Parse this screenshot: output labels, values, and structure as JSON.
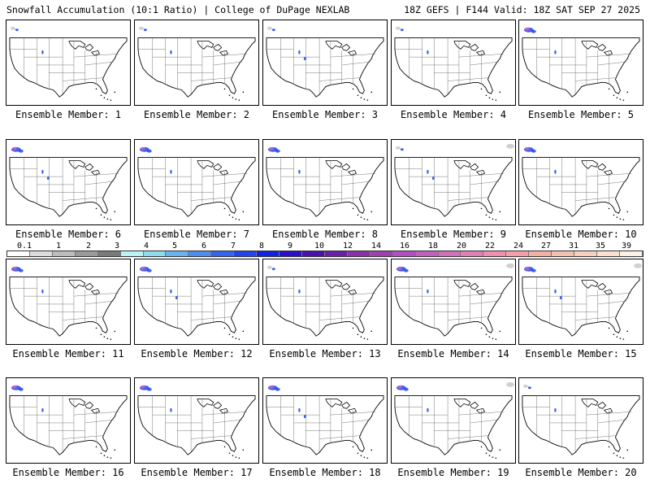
{
  "header": {
    "title": "Snowfall Accumulation (10:1 Ratio) | College of DuPage NEXLAB",
    "run_info": "18Z GEFS | F144 Valid: 18Z SAT SEP 27 2025"
  },
  "panels": [
    {
      "label": "Ensemble Member: 1"
    },
    {
      "label": "Ensemble Member: 2"
    },
    {
      "label": "Ensemble Member: 3"
    },
    {
      "label": "Ensemble Member: 4"
    },
    {
      "label": "Ensemble Member: 5"
    },
    {
      "label": "Ensemble Member: 6"
    },
    {
      "label": "Ensemble Member: 7"
    },
    {
      "label": "Ensemble Member: 8"
    },
    {
      "label": "Ensemble Member: 9"
    },
    {
      "label": "Ensemble Member: 10"
    },
    {
      "label": "Ensemble Member: 11"
    },
    {
      "label": "Ensemble Member: 12"
    },
    {
      "label": "Ensemble Member: 13"
    },
    {
      "label": "Ensemble Member: 14"
    },
    {
      "label": "Ensemble Member: 15"
    },
    {
      "label": "Ensemble Member: 16"
    },
    {
      "label": "Ensemble Member: 17"
    },
    {
      "label": "Ensemble Member: 18"
    },
    {
      "label": "Ensemble Member: 19"
    },
    {
      "label": "Ensemble Member: 20"
    }
  ],
  "legend": {
    "labels": [
      "0.1",
      "1",
      "2",
      "3",
      "4",
      "5",
      "6",
      "7",
      "8",
      "9",
      "10",
      "12",
      "14",
      "16",
      "18",
      "20",
      "22",
      "24",
      "27",
      "31",
      "35",
      "39"
    ],
    "colors": [
      "#ffffff",
      "#dcdcdc",
      "#bdbdbd",
      "#9a9a9a",
      "#7a7a7a",
      "#b9f3f3",
      "#8fdcec",
      "#69b4ee",
      "#4e8cf0",
      "#3366f0",
      "#1f44f0",
      "#0f22e6",
      "#2a10c8",
      "#4a0fb0",
      "#6a1fa8",
      "#8a30a8",
      "#a040b0",
      "#b050c0",
      "#c060c0",
      "#d070b8",
      "#e080b4",
      "#f090b0",
      "#f4a0a8",
      "#f4b0a4",
      "#f4c0b0",
      "#f8d0c0",
      "#fbe0d0",
      "#fdf0e4"
    ]
  },
  "colors": {
    "map_outline": "#000000",
    "state_lines": "#555555",
    "snow_heavy": "#1f44f0",
    "snow_pink": "#d060c0",
    "snow_light": "#c8c8c8"
  }
}
